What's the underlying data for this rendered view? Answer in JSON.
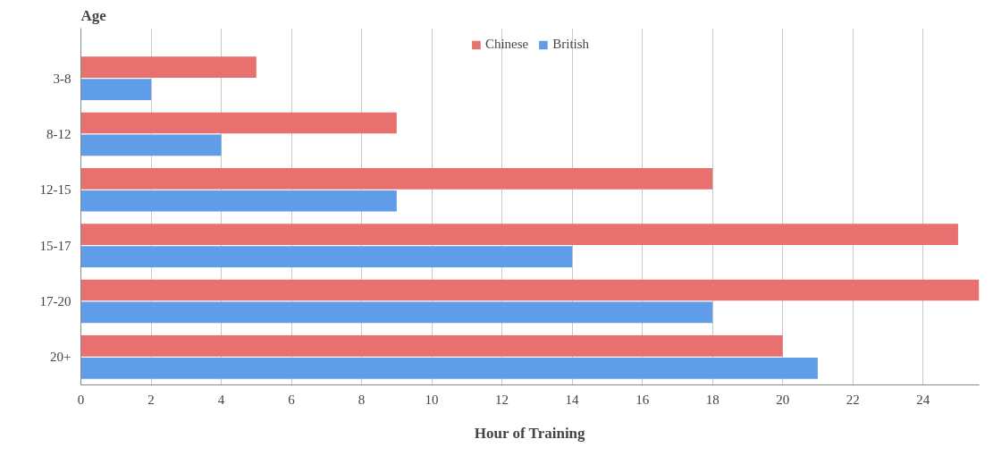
{
  "chart_data": {
    "type": "bar",
    "orientation": "horizontal",
    "ylabel": "Age",
    "xlabel": "Hour of Training",
    "categories": [
      "3-8",
      "8-12",
      "12-15",
      "15-17",
      "17-20",
      "20+"
    ],
    "series": [
      {
        "name": "Chinese",
        "color": "#e8706e",
        "values": [
          5,
          9,
          18,
          25,
          25.6,
          20
        ]
      },
      {
        "name": "British",
        "color": "#5f9de8",
        "values": [
          2,
          4,
          9,
          14,
          18,
          21
        ]
      }
    ],
    "xlim": [
      0,
      25.6
    ],
    "xticks": [
      0,
      2,
      4,
      6,
      8,
      10,
      12,
      14,
      16,
      18,
      20,
      22,
      24
    ],
    "grid": "x",
    "legend": "top"
  }
}
